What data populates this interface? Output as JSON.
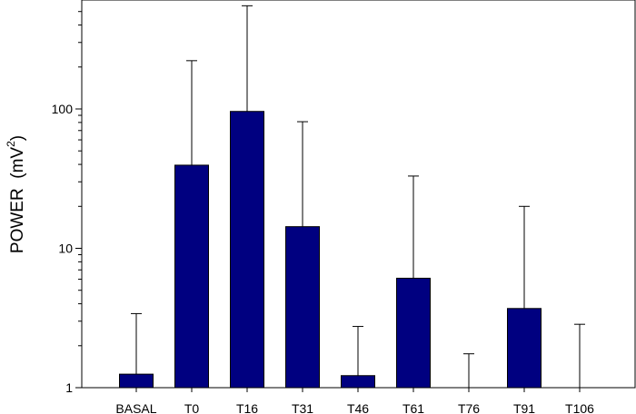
{
  "chart_data": {
    "type": "bar",
    "categories": [
      "BASAL",
      "T0",
      "T16",
      "T31",
      "T46",
      "T61",
      "T76",
      "T91",
      "T106"
    ],
    "values": [
      1.25,
      39.5,
      96,
      14.3,
      1.22,
      6.1,
      1.0,
      3.7,
      1.0
    ],
    "error_upper": [
      3.4,
      222,
      550,
      81,
      2.75,
      33,
      1.75,
      20,
      2.85
    ],
    "ylabel": "POWER",
    "ylabel_unit": "(mV",
    "ylabel_superscript": "2",
    "ylabel_close": ")",
    "yscale": "log",
    "ylim": [
      1,
      560
    ],
    "yticks": [
      1,
      10,
      100
    ],
    "ytick_labels": [
      "1",
      "10",
      "100"
    ],
    "grid": false,
    "colors": {
      "bar": "#000080",
      "bar_edge": "#000000",
      "error_bar": "#000000"
    }
  }
}
